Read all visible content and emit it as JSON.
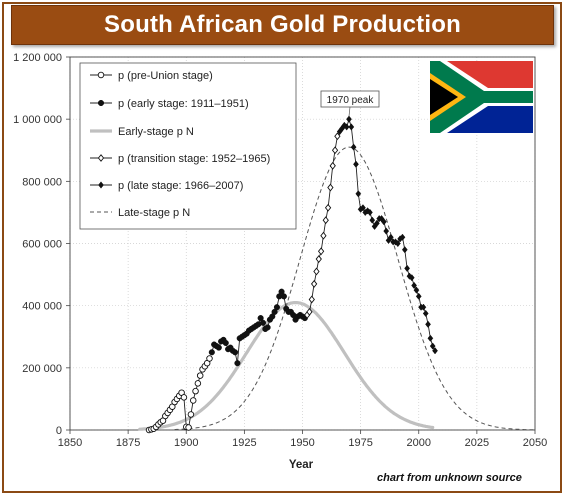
{
  "header": {
    "title": "South African Gold Production"
  },
  "footer": {
    "source": "chart from unknown source"
  },
  "flag": {
    "name": "south-africa-flag-icon"
  },
  "chart_data": {
    "type": "line",
    "title": "South African Gold Production",
    "xlabel": "Year",
    "ylabel": "",
    "xlim": [
      1850,
      2050
    ],
    "ylim": [
      0,
      1200000
    ],
    "x_ticks": [
      1850,
      1875,
      1900,
      1925,
      1950,
      1975,
      2000,
      2025,
      2050
    ],
    "y_ticks": [
      0,
      200000,
      400000,
      600000,
      800000,
      1000000,
      1200000
    ],
    "x_tick_labels": [
      "1850",
      "1875",
      "1900",
      "1925",
      "1950",
      "1975",
      "2000",
      "2025",
      "2050"
    ],
    "y_tick_labels": [
      "0",
      "200 000",
      "400 000",
      "600 000",
      "800 000",
      "1 000 000",
      "1 200 000"
    ],
    "grid": true,
    "legend_position": "top-left",
    "annotation": {
      "text": "1970 peak",
      "x": 1970,
      "y": 1000000
    },
    "colors": {
      "marker": "#111111",
      "gauss_early": "#c0c0c0",
      "gauss_late": "#555555",
      "grid": "#cccccc"
    },
    "series": [
      {
        "name": "p (pre-Union stage)",
        "marker": "open-circle",
        "points": [
          [
            1884,
            0
          ],
          [
            1885,
            2000
          ],
          [
            1886,
            4000
          ],
          [
            1887,
            10000
          ],
          [
            1888,
            18000
          ],
          [
            1889,
            25000
          ],
          [
            1890,
            30000
          ],
          [
            1891,
            45000
          ],
          [
            1892,
            55000
          ],
          [
            1893,
            65000
          ],
          [
            1894,
            75000
          ],
          [
            1895,
            90000
          ],
          [
            1896,
            100000
          ],
          [
            1897,
            110000
          ],
          [
            1898,
            120000
          ],
          [
            1899,
            105000
          ],
          [
            1900,
            10000
          ],
          [
            1901,
            8000
          ],
          [
            1902,
            50000
          ],
          [
            1903,
            95000
          ],
          [
            1904,
            125000
          ],
          [
            1905,
            150000
          ],
          [
            1906,
            175000
          ],
          [
            1907,
            195000
          ],
          [
            1908,
            205000
          ],
          [
            1909,
            215000
          ],
          [
            1910,
            230000
          ]
        ]
      },
      {
        "name": "p (early stage: 1911–1951)",
        "marker": "filled-circle",
        "points": [
          [
            1911,
            250000
          ],
          [
            1912,
            275000
          ],
          [
            1913,
            270000
          ],
          [
            1914,
            265000
          ],
          [
            1915,
            285000
          ],
          [
            1916,
            290000
          ],
          [
            1917,
            280000
          ],
          [
            1918,
            260000
          ],
          [
            1919,
            265000
          ],
          [
            1920,
            255000
          ],
          [
            1921,
            250000
          ],
          [
            1922,
            215000
          ],
          [
            1923,
            295000
          ],
          [
            1924,
            300000
          ],
          [
            1925,
            305000
          ],
          [
            1926,
            310000
          ],
          [
            1927,
            320000
          ],
          [
            1928,
            325000
          ],
          [
            1929,
            330000
          ],
          [
            1930,
            335000
          ],
          [
            1931,
            340000
          ],
          [
            1932,
            360000
          ],
          [
            1933,
            345000
          ],
          [
            1934,
            325000
          ],
          [
            1935,
            330000
          ],
          [
            1936,
            355000
          ],
          [
            1937,
            365000
          ],
          [
            1938,
            380000
          ],
          [
            1939,
            395000
          ],
          [
            1940,
            430000
          ],
          [
            1941,
            445000
          ],
          [
            1942,
            430000
          ],
          [
            1943,
            390000
          ],
          [
            1944,
            380000
          ],
          [
            1945,
            380000
          ],
          [
            1946,
            370000
          ],
          [
            1947,
            355000
          ],
          [
            1948,
            365000
          ],
          [
            1949,
            370000
          ],
          [
            1950,
            365000
          ],
          [
            1951,
            360000
          ]
        ]
      },
      {
        "name": "Early-stage p N",
        "style": "gaussian",
        "peak_x": 1947,
        "peak_y": 410000,
        "sigma": 21,
        "x_range": [
          1880,
          2006
        ]
      },
      {
        "name": "p (transition stage: 1952–1965)",
        "marker": "open-diamond",
        "points": [
          [
            1952,
            370000
          ],
          [
            1953,
            380000
          ],
          [
            1954,
            420000
          ],
          [
            1955,
            470000
          ],
          [
            1956,
            510000
          ],
          [
            1957,
            550000
          ],
          [
            1958,
            575000
          ],
          [
            1959,
            625000
          ],
          [
            1960,
            675000
          ],
          [
            1961,
            715000
          ],
          [
            1962,
            780000
          ],
          [
            1963,
            850000
          ],
          [
            1964,
            900000
          ],
          [
            1965,
            945000
          ]
        ]
      },
      {
        "name": "p (late stage: 1966–2007)",
        "marker": "filled-diamond",
        "points": [
          [
            1966,
            960000
          ],
          [
            1967,
            970000
          ],
          [
            1968,
            980000
          ],
          [
            1969,
            975000
          ],
          [
            1970,
            1000000
          ],
          [
            1971,
            975000
          ],
          [
            1972,
            910000
          ],
          [
            1973,
            855000
          ],
          [
            1974,
            760000
          ],
          [
            1975,
            710000
          ],
          [
            1976,
            715000
          ],
          [
            1977,
            700000
          ],
          [
            1978,
            705000
          ],
          [
            1979,
            700000
          ],
          [
            1980,
            675000
          ],
          [
            1981,
            655000
          ],
          [
            1982,
            665000
          ],
          [
            1983,
            680000
          ],
          [
            1984,
            680000
          ],
          [
            1985,
            670000
          ],
          [
            1986,
            640000
          ],
          [
            1987,
            610000
          ],
          [
            1988,
            620000
          ],
          [
            1989,
            605000
          ],
          [
            1990,
            605000
          ],
          [
            1991,
            600000
          ],
          [
            1992,
            615000
          ],
          [
            1993,
            620000
          ],
          [
            1994,
            580000
          ],
          [
            1995,
            520000
          ],
          [
            1996,
            495000
          ],
          [
            1997,
            490000
          ],
          [
            1998,
            465000
          ],
          [
            1999,
            450000
          ],
          [
            2000,
            430000
          ],
          [
            2001,
            395000
          ],
          [
            2002,
            395000
          ],
          [
            2003,
            375000
          ],
          [
            2004,
            340000
          ],
          [
            2005,
            295000
          ],
          [
            2006,
            270000
          ],
          [
            2007,
            255000
          ]
        ]
      },
      {
        "name": "Late-stage p N",
        "style": "gaussian-dashed",
        "peak_x": 1970,
        "peak_y": 910000,
        "sigma": 21,
        "x_range": [
          1895,
          2050
        ]
      }
    ]
  }
}
